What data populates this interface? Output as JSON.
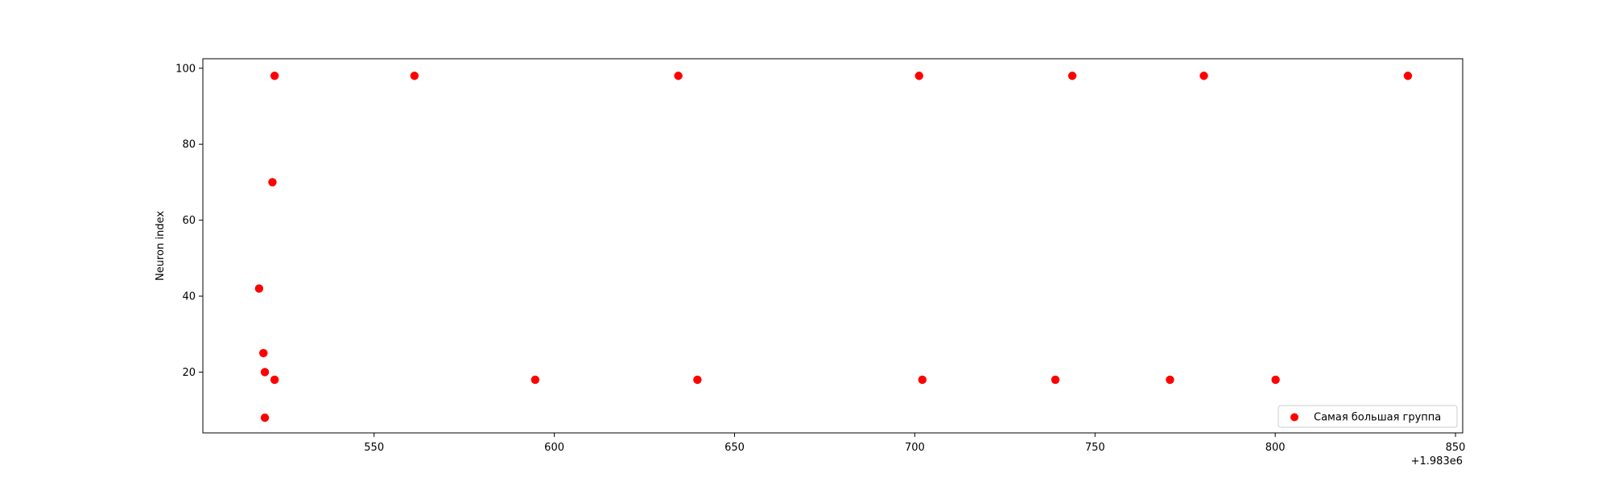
{
  "chart_data": {
    "type": "scatter",
    "title": "",
    "xlabel": "",
    "ylabel": "Neuron index",
    "x_offset_label": "+1.983e6",
    "xlim": [
      1983502.5,
      1983852
    ],
    "ylim": [
      4,
      102.5
    ],
    "xticks": [
      550,
      600,
      650,
      700,
      750,
      800,
      850
    ],
    "yticks": [
      20,
      40,
      60,
      80,
      100
    ],
    "grid": false,
    "legend_position": "lower-right",
    "series": [
      {
        "name": "Самая большая группа",
        "color": "#ff0000",
        "points": [
          [
            1983522.4,
            98
          ],
          [
            1983561.2,
            98
          ],
          [
            1983634.4,
            98
          ],
          [
            1983701.2,
            98
          ],
          [
            1983743.7,
            98
          ],
          [
            1983780.2,
            98
          ],
          [
            1983836.8,
            98
          ],
          [
            1983521.8,
            70
          ],
          [
            1983518.1,
            42
          ],
          [
            1983519.3,
            25
          ],
          [
            1983519.7,
            20
          ],
          [
            1983522.4,
            18
          ],
          [
            1983594.7,
            18
          ],
          [
            1983639.7,
            18
          ],
          [
            1983702.1,
            18
          ],
          [
            1983739.0,
            18
          ],
          [
            1983770.8,
            18
          ],
          [
            1983800.1,
            18
          ],
          [
            1983519.7,
            8
          ]
        ]
      }
    ]
  }
}
